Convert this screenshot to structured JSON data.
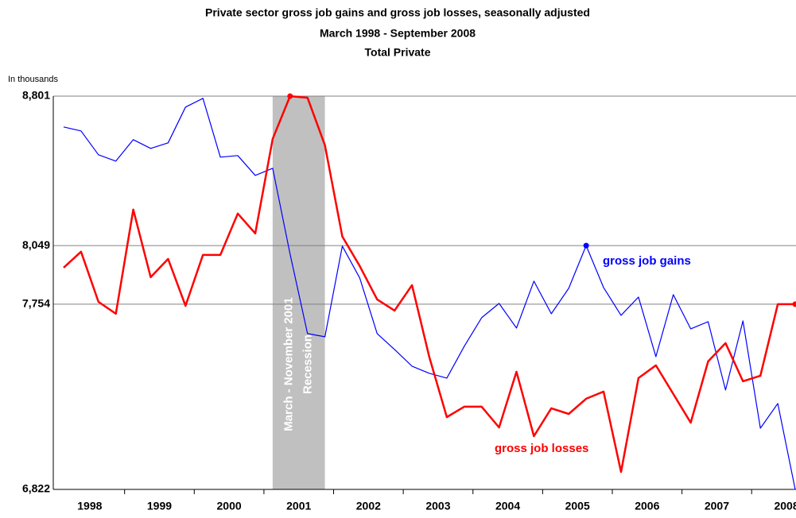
{
  "chart_data": {
    "type": "line",
    "title": "Private sector gross job gains and gross job losses, seasonally adjusted",
    "subtitle": [
      "March 1998 - September 2008",
      "Total Private"
    ],
    "y_label": "In thousands",
    "annotation": [
      "March - November 2001",
      "Recession"
    ],
    "categories": [
      null,
      "1998",
      null,
      null,
      null,
      "1999",
      null,
      null,
      null,
      "2000",
      null,
      null,
      null,
      "2001",
      null,
      null,
      null,
      "2002",
      null,
      null,
      null,
      "2003",
      null,
      null,
      null,
      "2004",
      null,
      null,
      null,
      "2005",
      null,
      null,
      null,
      "2006",
      null,
      null,
      null,
      "2007",
      null,
      null,
      null,
      "2008",
      null
    ],
    "series": [
      {
        "name": "gross job gains",
        "color": "#0000ff",
        "values": [
          8646,
          8626,
          8506,
          8474,
          8582,
          8538,
          8566,
          8746,
          8790,
          8494,
          8502,
          8402,
          8438,
          8006,
          7606,
          7590,
          8046,
          7886,
          7606,
          7526,
          7442,
          7406,
          7382,
          7542,
          7686,
          7758,
          7634,
          7870,
          7706,
          7834,
          8049,
          7838,
          7698,
          7790,
          7490,
          7802,
          7630,
          7666,
          7322,
          7670,
          7130,
          7254,
          6822
        ]
      },
      {
        "name": "gross job losses",
        "color": "#ff0000",
        "values": [
          7938,
          8018,
          7766,
          7706,
          8230,
          7890,
          7982,
          7746,
          8002,
          8002,
          8210,
          8110,
          8586,
          8801,
          8793,
          8554,
          8094,
          7946,
          7778,
          7722,
          7850,
          7486,
          7186,
          7238,
          7238,
          7134,
          7414,
          7090,
          7230,
          7202,
          7278,
          7314,
          6910,
          7382,
          7446,
          7302,
          7158,
          7466,
          7558,
          7366,
          7394,
          7754,
          7754
        ]
      }
    ],
    "ylim": [
      6822,
      8801
    ],
    "yticks": [
      {
        "value": 6822,
        "label": "6,822"
      },
      {
        "value": 7754,
        "label": "7,754"
      },
      {
        "value": 8049,
        "label": "8,049"
      },
      {
        "value": 8801,
        "label": "8,801"
      }
    ],
    "grid": true
  }
}
